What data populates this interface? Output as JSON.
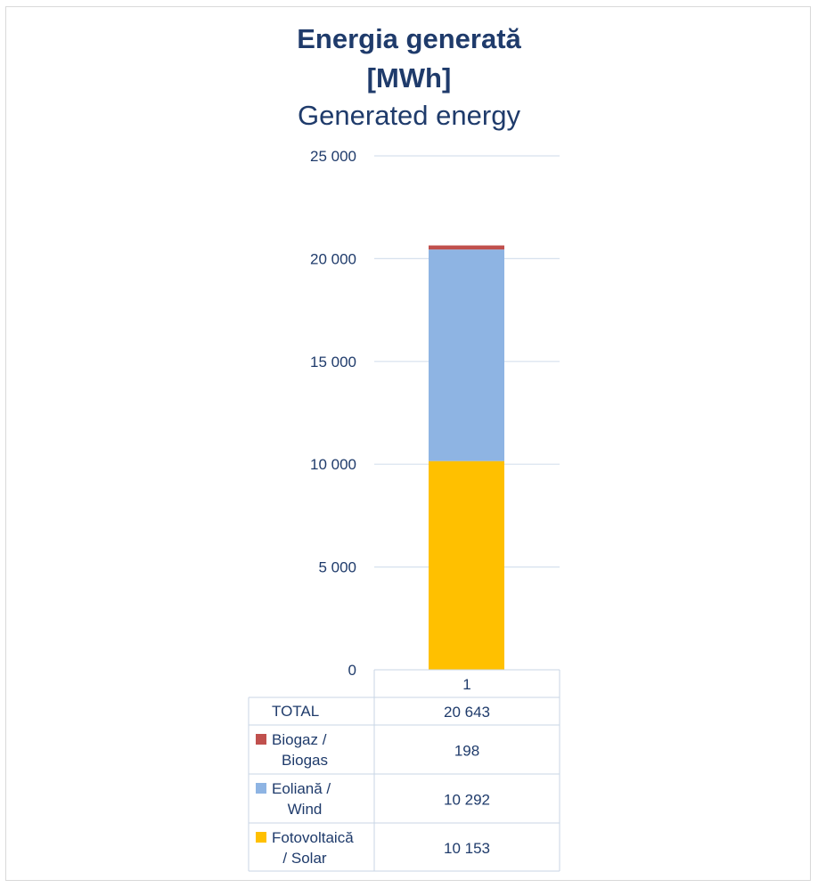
{
  "chart_data": {
    "type": "bar",
    "stacked": true,
    "title": "Energia generată [MWh]",
    "title_line1": "Energia generată",
    "title_line2": "[MWh]",
    "subtitle": "Generated energy",
    "categories": [
      "1"
    ],
    "ylim": [
      0,
      25000
    ],
    "yticks": [
      0,
      5000,
      10000,
      15000,
      20000,
      25000
    ],
    "ytick_labels": [
      "0",
      "5 000",
      "10 000",
      "15 000",
      "20 000",
      "25 000"
    ],
    "grid": true,
    "series": [
      {
        "name_line1": "Fotovoltaică",
        "name_line2": "/ Solar",
        "values": [
          10153
        ],
        "color": "#ffc000",
        "label": "10 153"
      },
      {
        "name_line1": "Eoliană /",
        "name_line2": "Wind",
        "values": [
          10292
        ],
        "color": "#8eb4e3",
        "label": "10 292"
      },
      {
        "name_line1": "Biogaz /",
        "name_line2": "Biogas",
        "values": [
          198
        ],
        "color": "#c0504d",
        "label": "198"
      }
    ],
    "total": {
      "label": "TOTAL",
      "value": 20643,
      "value_label": "20 643"
    }
  }
}
